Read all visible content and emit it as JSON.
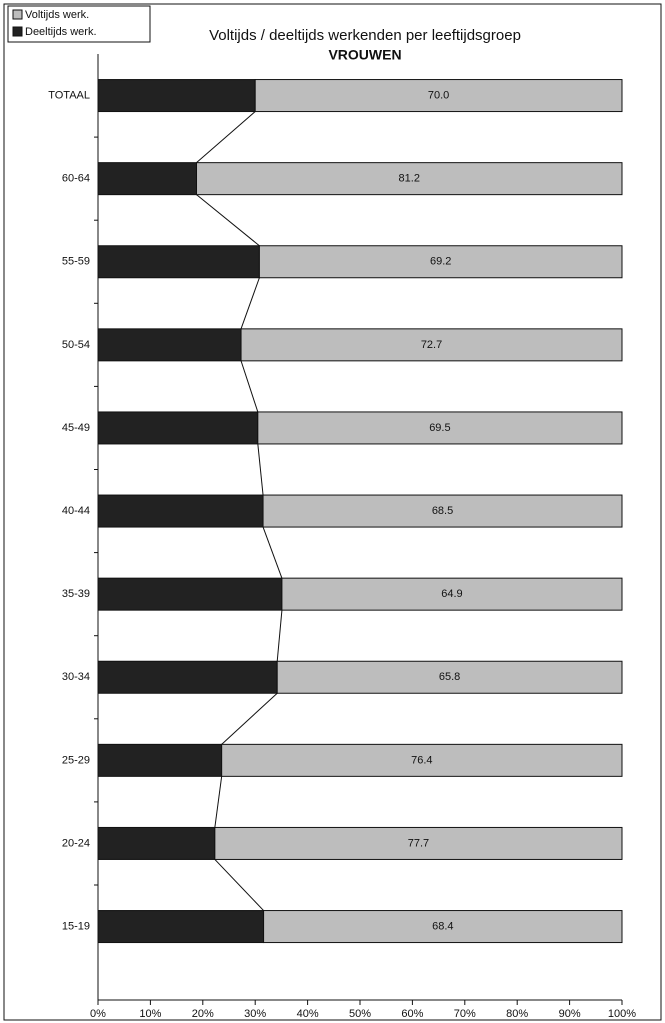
{
  "chart_data": {
    "type": "stacked-bar-horizontal",
    "title": "Voltijds / deeltijds werkenden per leeftijdsgroep",
    "subtitle": "VROUWEN",
    "categories": [
      "TOTAAL",
      "60-64",
      "55-59",
      "50-54",
      "45-49",
      "40-44",
      "35-39",
      "30-34",
      "25-29",
      "20-24",
      "15-19"
    ],
    "series": [
      {
        "name": "Deeltijds werk.",
        "color": "#222222",
        "values": [
          30.0,
          18.8,
          30.8,
          27.3,
          30.5,
          31.5,
          35.1,
          34.2,
          23.6,
          22.3,
          31.6
        ]
      },
      {
        "name": "Voltijds werk.",
        "color": "#bdbdbd",
        "values": [
          70.0,
          81.2,
          69.2,
          72.7,
          69.5,
          68.5,
          64.9,
          65.8,
          76.4,
          77.7,
          68.4
        ],
        "value_labels": [
          "70.0",
          "81.2",
          "69.2",
          "72.7",
          "69.5",
          "68.5",
          "64.9",
          "65.8",
          "76.4",
          "77.7",
          "68.4"
        ]
      }
    ],
    "xlim": [
      0,
      100
    ],
    "xticks": [
      {
        "value": 0,
        "label": "0%"
      },
      {
        "value": 10,
        "label": "10%"
      },
      {
        "value": 20,
        "label": "20%"
      },
      {
        "value": 30,
        "label": "30%"
      },
      {
        "value": 40,
        "label": "40%"
      },
      {
        "value": 50,
        "label": "50%"
      },
      {
        "value": 60,
        "label": "60%"
      },
      {
        "value": 70,
        "label": "70%"
      },
      {
        "value": 80,
        "label": "80%"
      },
      {
        "value": 90,
        "label": "90%"
      },
      {
        "value": 100,
        "label": "100%"
      }
    ],
    "legend": "top-left",
    "series_lines": true
  }
}
